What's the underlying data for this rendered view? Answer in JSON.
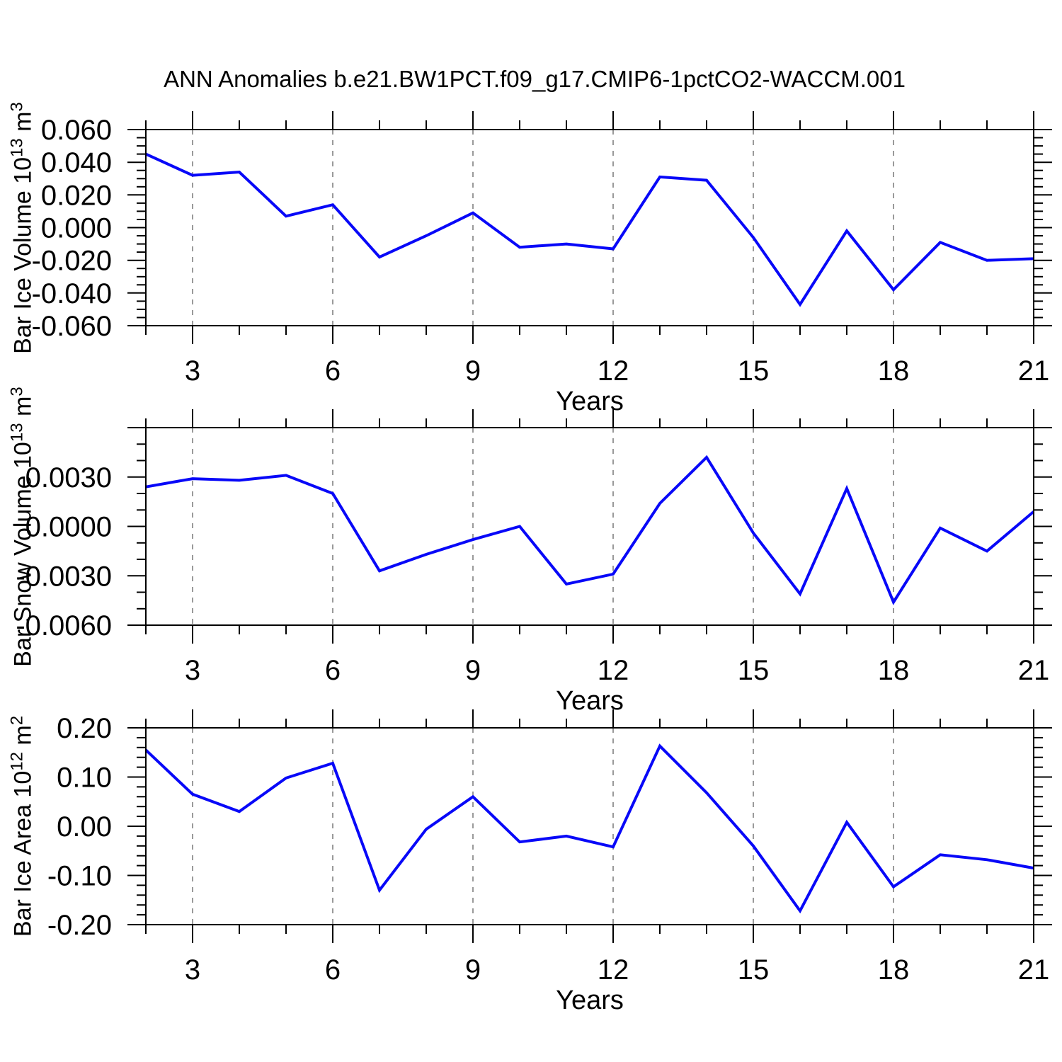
{
  "title": "ANN Anomalies b.e21.BW1PCT.f09_g17.CMIP6-1pctCO2-WACCM.001",
  "colors": {
    "line": "#0808f8",
    "axis": "#000000",
    "grid": "#787878",
    "background": "#ffffff",
    "text": "#000000"
  },
  "chart_data": [
    {
      "type": "line",
      "panel": "bar-ice-volume",
      "ylabel_parts": {
        "prefix": "Bar Ice Volume 10",
        "exp": "13",
        "unit": " m",
        "unit_exp": "3"
      },
      "xlabel": "Years",
      "x": [
        2,
        3,
        4,
        5,
        6,
        7,
        8,
        9,
        10,
        11,
        12,
        13,
        14,
        15,
        16,
        17,
        18,
        19,
        20,
        21
      ],
      "values": [
        0.045,
        0.032,
        0.034,
        0.007,
        0.014,
        -0.018,
        -0.005,
        0.009,
        -0.012,
        -0.01,
        -0.013,
        0.031,
        0.029,
        -0.006,
        -0.047,
        -0.002,
        -0.038,
        -0.009,
        -0.02,
        -0.019
      ],
      "xlim": [
        2,
        21
      ],
      "ylim": [
        -0.06,
        0.06
      ],
      "yticks": [
        {
          "v": 0.06,
          "label": "0.060"
        },
        {
          "v": 0.04,
          "label": "0.040"
        },
        {
          "v": 0.02,
          "label": "0.020"
        },
        {
          "v": 0.0,
          "label": "0.000"
        },
        {
          "v": -0.02,
          "label": "-0.020"
        },
        {
          "v": -0.04,
          "label": "-0.040"
        },
        {
          "v": -0.06,
          "label": "-0.060"
        }
      ],
      "yminor_step": 0.005,
      "xticks": [
        3,
        6,
        9,
        12,
        15,
        18,
        21
      ],
      "xminor_step": 1,
      "x_gridlines": [
        3,
        6,
        9,
        12,
        15,
        18
      ],
      "grid_dashed": true
    },
    {
      "type": "line",
      "panel": "bar-snow-volume",
      "ylabel_parts": {
        "prefix": "Bar Snow Volume 10",
        "exp": "13",
        "unit": " m",
        "unit_exp": "3"
      },
      "xlabel": "Years",
      "x": [
        2,
        3,
        4,
        5,
        6,
        7,
        8,
        9,
        10,
        11,
        12,
        13,
        14,
        15,
        16,
        17,
        18,
        19,
        20,
        21
      ],
      "values": [
        0.0024,
        0.0029,
        0.0028,
        0.0031,
        0.002,
        -0.0027,
        -0.0017,
        -0.0008,
        0.0,
        -0.0035,
        -0.0029,
        0.0014,
        0.0042,
        -0.0004,
        -0.0041,
        0.0023,
        -0.0046,
        -0.0001,
        -0.0015,
        0.0009
      ],
      "xlim": [
        2,
        21
      ],
      "ylim": [
        -0.006,
        0.006
      ],
      "yticks": [
        {
          "v": 0.006,
          "label": ""
        },
        {
          "v": 0.003,
          "label": "0.0030"
        },
        {
          "v": 0.0,
          "label": "0.0000"
        },
        {
          "v": -0.003,
          "label": "-0.0030"
        },
        {
          "v": -0.006,
          "label": "-0.0060"
        }
      ],
      "yminor_step": 0.001,
      "xticks": [
        3,
        6,
        9,
        12,
        15,
        18,
        21
      ],
      "xminor_step": 1,
      "x_gridlines": [
        3,
        6,
        9,
        12,
        15,
        18
      ],
      "grid_dashed": true
    },
    {
      "type": "line",
      "panel": "bar-ice-area",
      "ylabel_parts": {
        "prefix": "Bar Ice Area 10",
        "exp": "12",
        "unit": " m",
        "unit_exp": "2"
      },
      "xlabel": "Years",
      "x": [
        2,
        3,
        4,
        5,
        6,
        7,
        8,
        9,
        10,
        11,
        12,
        13,
        14,
        15,
        16,
        17,
        18,
        19,
        20,
        21
      ],
      "values": [
        0.155,
        0.065,
        0.03,
        0.098,
        0.128,
        -0.13,
        -0.006,
        0.06,
        -0.032,
        -0.02,
        -0.042,
        0.163,
        0.068,
        -0.04,
        -0.172,
        0.008,
        -0.123,
        -0.058,
        -0.068,
        -0.085
      ],
      "xlim": [
        2,
        21
      ],
      "ylim": [
        -0.2,
        0.2
      ],
      "yticks": [
        {
          "v": 0.2,
          "label": "0.20"
        },
        {
          "v": 0.1,
          "label": "0.10"
        },
        {
          "v": 0.0,
          "label": "0.00"
        },
        {
          "v": -0.1,
          "label": "-0.10"
        },
        {
          "v": -0.2,
          "label": "-0.20"
        }
      ],
      "yminor_step": 0.02,
      "xticks": [
        3,
        6,
        9,
        12,
        15,
        18,
        21
      ],
      "xminor_step": 1,
      "x_gridlines": [
        3,
        6,
        9,
        12,
        15,
        18
      ],
      "grid_dashed": true
    }
  ]
}
